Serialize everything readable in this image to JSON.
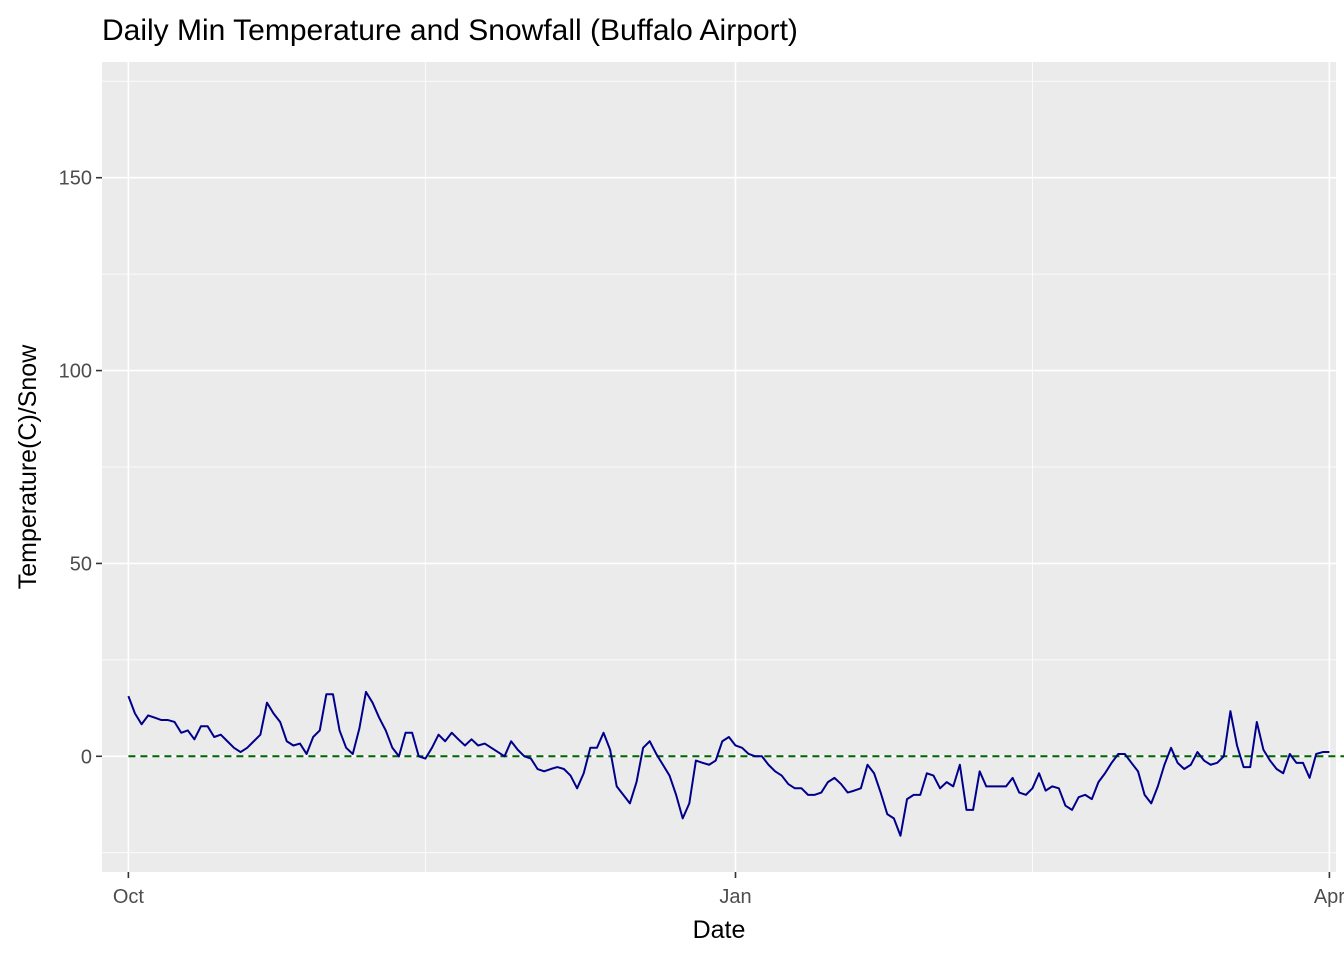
{
  "chart_data": {
    "type": "line",
    "title": "Daily Min Temperature and Snowfall (Buffalo Airport)",
    "xlabel": "Date",
    "ylabel": "Temperature(C)/Snow",
    "x_range": [
      "2020-09-27",
      "2021-04-02"
    ],
    "xlim": [
      "2020-09-27",
      "2021-04-02"
    ],
    "ylim": [
      -30,
      180
    ],
    "grid": true,
    "legend": "none",
    "x_ticks": [
      {
        "label": "Oct",
        "date": "2020-10-01"
      },
      {
        "label": "Jan",
        "date": "2021-01-01"
      },
      {
        "label": "Apr",
        "date": "2021-04-01"
      }
    ],
    "x_minor_dates": [
      "2020-11-15",
      "2021-02-15"
    ],
    "y_ticks": [
      0,
      50,
      100,
      150
    ],
    "y_minor": [
      -25,
      25,
      75,
      125,
      175
    ],
    "series": [
      {
        "key": "snow",
        "color": "#006400",
        "dashed": true,
        "x_start": "2020-10-01",
        "values": [
          0,
          0,
          0,
          0,
          0,
          0,
          0,
          0,
          0,
          0,
          0,
          0,
          0,
          0,
          0,
          0,
          0,
          0,
          0,
          0,
          0,
          0,
          0,
          0,
          0,
          0,
          0,
          0,
          0,
          0,
          0,
          0,
          0,
          0,
          0,
          0,
          0,
          0,
          0,
          0,
          0,
          0,
          0,
          0,
          0,
          0,
          0,
          0,
          0,
          0,
          0,
          0,
          0,
          0,
          0,
          0,
          0,
          0,
          0,
          0,
          0,
          0,
          0,
          0,
          0,
          0,
          0,
          0,
          0,
          0,
          0,
          0,
          0,
          0,
          0,
          0,
          0,
          0,
          0,
          0,
          0,
          0,
          0,
          0,
          0,
          0,
          0,
          0,
          0,
          0,
          0,
          0,
          0,
          0,
          0,
          0,
          0,
          0,
          0,
          0,
          0,
          0,
          0,
          0,
          0,
          0,
          0,
          0,
          0,
          0,
          0,
          0,
          0,
          0,
          0,
          0,
          0,
          0,
          0,
          0,
          0,
          0,
          0,
          0,
          0,
          0,
          0,
          0,
          0,
          0,
          0,
          0,
          0,
          0,
          0,
          0,
          0,
          0,
          0,
          0,
          0,
          0,
          0,
          0,
          0,
          0,
          0,
          0,
          0,
          0,
          0,
          0,
          0,
          0,
          0,
          0,
          0,
          0,
          0,
          0,
          0,
          0,
          0,
          0,
          0,
          0,
          0,
          0,
          0,
          0,
          0,
          0,
          0,
          0,
          0,
          0,
          0,
          0,
          0,
          0,
          0,
          0,
          0,
          0,
          0,
          0
        ]
      },
      {
        "key": "tmin",
        "color": "#00008B",
        "dashed": false,
        "x_start": "2020-10-01",
        "values": [
          15.6,
          11.1,
          8.3,
          10.6,
          10,
          9.4,
          9.4,
          8.9,
          6.1,
          6.7,
          4.4,
          7.8,
          7.8,
          5,
          5.6,
          3.9,
          2.2,
          1.1,
          2.2,
          3.9,
          5.6,
          13.9,
          11.1,
          8.9,
          3.9,
          2.8,
          3.3,
          0.6,
          5,
          6.7,
          16.1,
          16.1,
          6.7,
          2.2,
          0.6,
          7.2,
          16.7,
          13.9,
          10,
          6.7,
          2.2,
          0,
          6.1,
          6.1,
          0,
          -0.6,
          2.2,
          5.6,
          3.9,
          6.1,
          4.4,
          2.8,
          4.4,
          2.8,
          3.3,
          2.2,
          1.1,
          0,
          3.9,
          1.7,
          0,
          -0.6,
          -3.3,
          -3.9,
          -3.3,
          -2.8,
          -3.3,
          -5,
          -8.3,
          -4.4,
          2.2,
          2.2,
          6.1,
          1.7,
          -7.8,
          -10,
          -12.2,
          -6.7,
          2.2,
          3.9,
          0.6,
          -2.2,
          -5,
          -10,
          -16.1,
          -12.2,
          -1.1,
          -1.7,
          -2.2,
          -1.1,
          3.9,
          5,
          2.8,
          2.2,
          0.6,
          0,
          0,
          -2.2,
          -3.9,
          -5,
          -7.2,
          -8.3,
          -8.3,
          -10,
          -10,
          -9.4,
          -6.7,
          -5.6,
          -7.2,
          -9.4,
          -8.9,
          -8.3,
          -2.2,
          -4.4,
          -9.4,
          -15,
          -16.1,
          -20.6,
          -11.1,
          -10,
          -10,
          -4.4,
          -5,
          -8.3,
          -6.7,
          -7.8,
          -2.2,
          -13.9,
          -13.9,
          -3.9,
          -7.8,
          -7.8,
          -7.8,
          -7.8,
          -5.6,
          -9.4,
          -10,
          -8.3,
          -4.4,
          -8.9,
          -7.8,
          -8.3,
          -12.8,
          -13.9,
          -10.6,
          -10,
          -11.1,
          -6.7,
          -4.4,
          -1.7,
          0.6,
          0.6,
          -1.7,
          -3.9,
          -10,
          -12.2,
          -7.8,
          -2.2,
          2.2,
          -1.7,
          -3.3,
          -2.2,
          1.1,
          -1.1,
          -2.2,
          -1.7,
          0,
          11.7,
          2.8,
          -2.8,
          -2.8,
          8.9,
          1.7,
          -1.1,
          -3.3,
          -4.4,
          0.6,
          -1.7,
          -1.7,
          -5.6,
          0.6,
          1.1,
          1.1
        ]
      }
    ]
  }
}
